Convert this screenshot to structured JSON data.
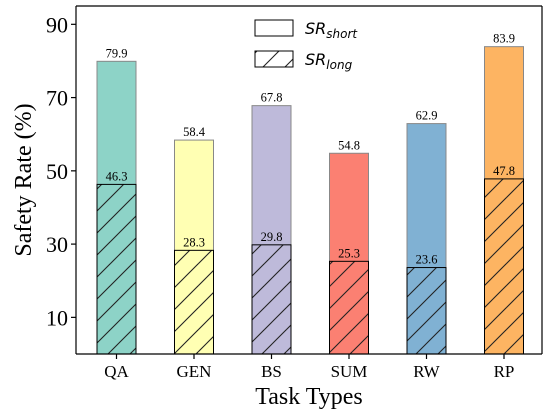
{
  "chart_data": {
    "type": "bar",
    "ylabel": "Safety Rate (%)",
    "xlabel": "Task Types",
    "categories": [
      "QA",
      "GEN",
      "BS",
      "SUM",
      "RW",
      "RP"
    ],
    "ylim": [
      0,
      95
    ],
    "yticks": [
      10,
      30,
      50,
      70,
      90
    ],
    "grid": false,
    "legend_position": "top-center",
    "series": [
      {
        "name": "SR_short",
        "legend_main": "SR",
        "legend_sub": "short",
        "style": "solid",
        "values": [
          79.9,
          58.4,
          67.8,
          54.8,
          62.9,
          83.9
        ],
        "labels": [
          "79.9",
          "58.4",
          "67.8",
          "54.8",
          "62.9",
          "83.9"
        ]
      },
      {
        "name": "SR_long",
        "legend_main": "SR",
        "legend_sub": "long",
        "style": "hatched",
        "values": [
          46.3,
          28.3,
          29.8,
          25.3,
          23.6,
          47.8
        ],
        "labels": [
          "46.3",
          "28.3",
          "29.8",
          "25.3",
          "23.6",
          "47.8"
        ]
      }
    ],
    "colors": [
      "#8dd3c7",
      "#ffffb3",
      "#bebada",
      "#fb8072",
      "#80b1d3",
      "#fdb462"
    ]
  }
}
